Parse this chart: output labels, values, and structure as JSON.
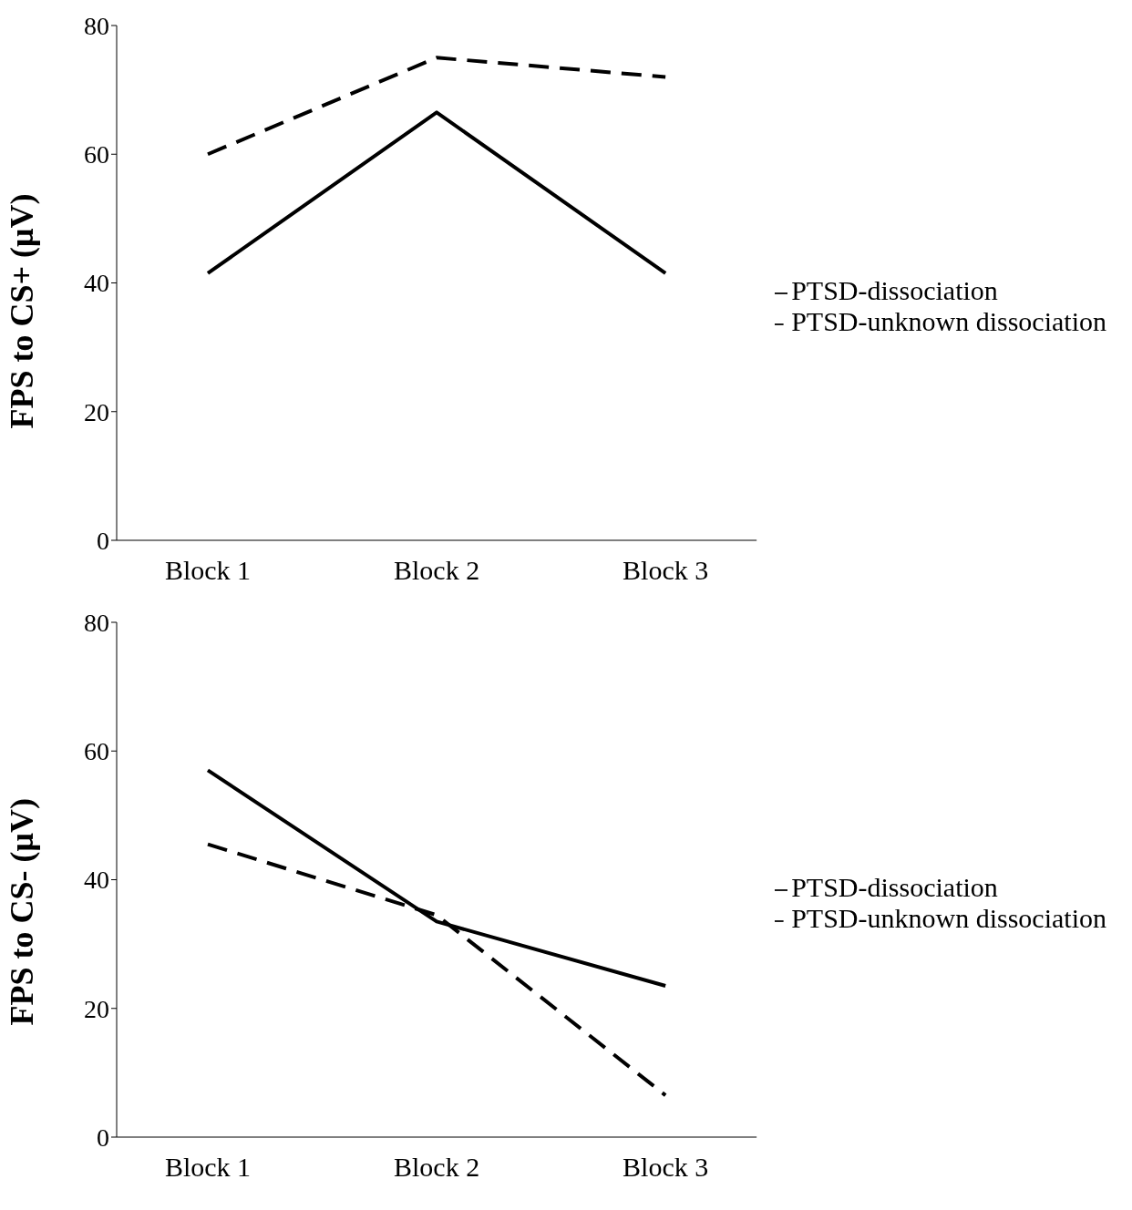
{
  "chart_data": [
    {
      "type": "line",
      "ylabel": "FPS to CS+ (μV)",
      "categories": [
        "Block 1",
        "Block 2",
        "Block 3"
      ],
      "ylim": [
        0,
        80
      ],
      "yticks": [
        0,
        20,
        40,
        60,
        80
      ],
      "grid": false,
      "legend": "right",
      "marker": "none",
      "series": [
        {
          "name": "PTSD-unknown dissociation",
          "color": "#000000",
          "line_style": "dashed",
          "values": [
            60,
            75,
            72
          ]
        },
        {
          "name": "PTSD-dissociation",
          "color": "#000000",
          "line_style": "solid",
          "values": [
            41.5,
            66.5,
            41.5
          ]
        }
      ]
    },
    {
      "type": "line",
      "ylabel": "FPS to CS- (μV)",
      "categories": [
        "Block 1",
        "Block 2",
        "Block 3"
      ],
      "ylim": [
        0,
        80
      ],
      "yticks": [
        0,
        20,
        40,
        60,
        80
      ],
      "grid": false,
      "legend": "right",
      "marker": "none",
      "series": [
        {
          "name": "PTSD-unknown dissociation",
          "color": "#000000",
          "line_style": "dashed",
          "values": [
            45.5,
            34.5,
            6.5
          ]
        },
        {
          "name": "PTSD-dissociation",
          "color": "#000000",
          "line_style": "solid",
          "values": [
            57,
            33.5,
            23.5
          ]
        }
      ]
    }
  ]
}
